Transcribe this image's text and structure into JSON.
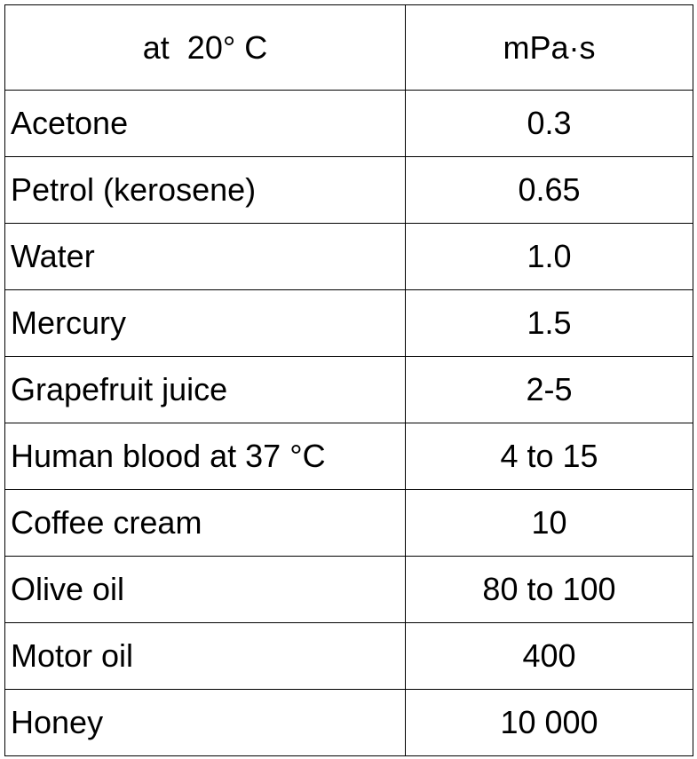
{
  "table": {
    "header": {
      "condition": "at  20° C",
      "unit": "mPa·s"
    },
    "rows": [
      {
        "substance": "Acetone",
        "value": "0.3"
      },
      {
        "substance": "Petrol (kerosene)",
        "value": "0.65"
      },
      {
        "substance": "Water",
        "value": "1.0"
      },
      {
        "substance": "Mercury",
        "value": "1.5"
      },
      {
        "substance": "Grapefruit juice",
        "value": "2-5"
      },
      {
        "substance": "Human blood at 37 °C",
        "value": "4 to 15"
      },
      {
        "substance": "Coffee cream",
        "value": "10"
      },
      {
        "substance": "Olive oil",
        "value": "80 to 100"
      },
      {
        "substance": "Motor oil",
        "value": "400"
      },
      {
        "substance": "Honey",
        "value": "10 000"
      }
    ]
  }
}
